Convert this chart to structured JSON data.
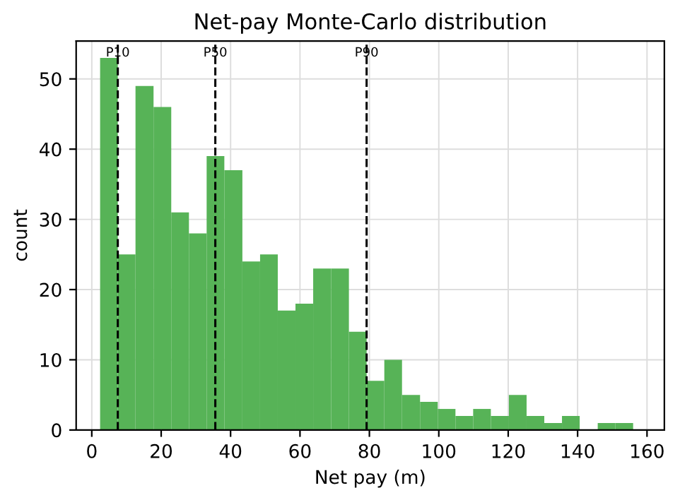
{
  "chart_data": {
    "type": "histogram",
    "title": "Net-pay Monte-Carlo distribution",
    "xlabel": "Net pay (m)",
    "ylabel": "count",
    "bins": [
      2.4,
      7.5,
      12.6,
      17.8,
      22.9,
      28.0,
      33.1,
      38.2,
      43.4,
      48.5,
      53.6,
      58.7,
      63.8,
      69.0,
      74.1,
      79.2,
      84.3,
      89.4,
      94.6,
      99.7,
      104.8,
      109.9,
      115.0,
      120.2,
      125.3,
      130.4,
      135.5,
      140.6,
      145.8,
      150.9,
      156.0
    ],
    "values": [
      53,
      25,
      49,
      46,
      31,
      28,
      39,
      37,
      24,
      25,
      17,
      18,
      23,
      23,
      14,
      7,
      10,
      5,
      4,
      3,
      2,
      3,
      2,
      5,
      2,
      1,
      2,
      0,
      1,
      1
    ],
    "color": "#57b357",
    "xlim": [
      -4.5,
      165
    ],
    "ylim": [
      0,
      55.4
    ],
    "xticks": [
      0,
      20,
      40,
      60,
      80,
      100,
      120,
      140,
      160
    ],
    "yticks": [
      0,
      10,
      20,
      30,
      40,
      50
    ],
    "grid": true,
    "ref_lines": [
      {
        "axis": "x",
        "value": 7.5,
        "label": "P10",
        "color": "#000000",
        "line_style": "dashed"
      },
      {
        "axis": "x",
        "value": 35.6,
        "label": "P50",
        "color": "#000000",
        "line_style": "dashed"
      },
      {
        "axis": "x",
        "value": 79.2,
        "label": "P90",
        "color": "#000000",
        "line_style": "dashed"
      }
    ]
  }
}
